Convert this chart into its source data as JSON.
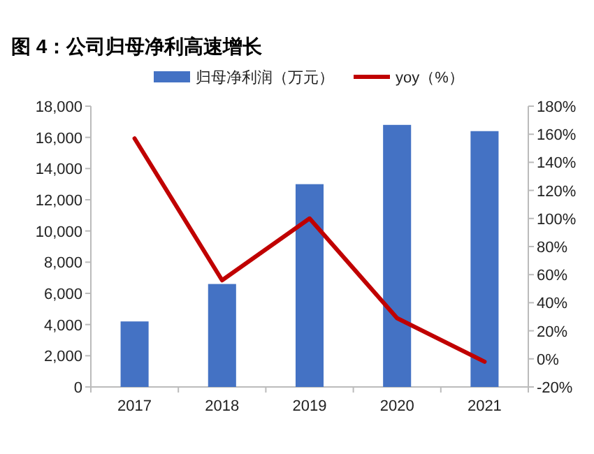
{
  "chart_data": {
    "type": "bar",
    "title": "图 4：公司归母净利高速增长",
    "categories": [
      "2017",
      "2018",
      "2019",
      "2020",
      "2021"
    ],
    "series": [
      {
        "name": "归母净利润（万元）",
        "color": "#4472c4",
        "values": [
          4200,
          6600,
          13000,
          16800,
          16400
        ]
      },
      {
        "name": "yoy（%）",
        "type": "line",
        "axis": "y2",
        "color": "#c00000",
        "values": [
          157,
          56,
          100,
          29,
          -2
        ]
      }
    ],
    "ylim": [
      0,
      18000
    ],
    "yticks": [
      {
        "value": 0,
        "label": "0"
      },
      {
        "value": 2000,
        "label": "2,000"
      },
      {
        "value": 4000,
        "label": "4,000"
      },
      {
        "value": 6000,
        "label": "6,000"
      },
      {
        "value": 8000,
        "label": "8,000"
      },
      {
        "value": 10000,
        "label": "10,000"
      },
      {
        "value": 12000,
        "label": "12,000"
      },
      {
        "value": 14000,
        "label": "14,000"
      },
      {
        "value": 16000,
        "label": "16,000"
      },
      {
        "value": 18000,
        "label": "18,000"
      }
    ],
    "y2lim": [
      -20,
      180
    ],
    "y2ticks": [
      {
        "value": -20,
        "label": "-20%"
      },
      {
        "value": 0,
        "label": "0%"
      },
      {
        "value": 20,
        "label": "20%"
      },
      {
        "value": 40,
        "label": "40%"
      },
      {
        "value": 60,
        "label": "60%"
      },
      {
        "value": 80,
        "label": "80%"
      },
      {
        "value": 100,
        "label": "100%"
      },
      {
        "value": 120,
        "label": "120%"
      },
      {
        "value": 140,
        "label": "140%"
      },
      {
        "value": 160,
        "label": "160%"
      },
      {
        "value": 180,
        "label": "180%"
      }
    ],
    "legend": "top",
    "marker": "none",
    "line_style": "solid",
    "grid": false
  }
}
